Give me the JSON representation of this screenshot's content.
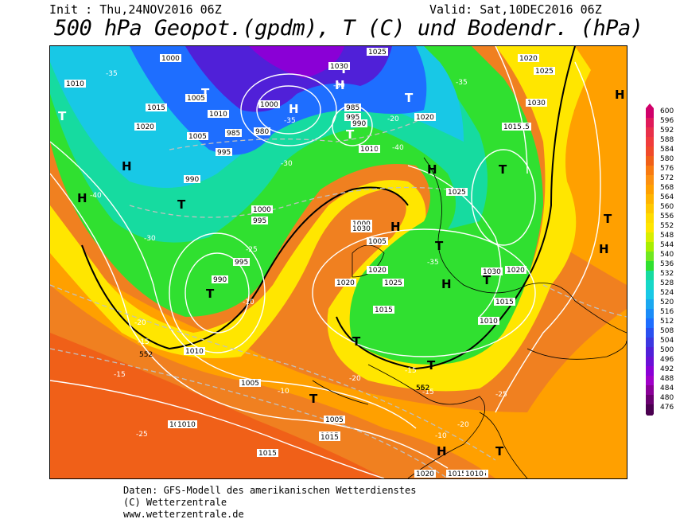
{
  "header": {
    "init": "Init : Thu,24NOV2016 06Z",
    "valid": "Valid: Sat,10DEC2016 06Z",
    "title": "500 hPa Geopot.(gpdm), T (C) und Bodendr. (hPa)"
  },
  "colors": {
    "deep_purple": "#8a00d6",
    "blue": "#1e6eff",
    "cyan": "#18c8e6",
    "teal": "#16dba0",
    "green": "#30e030",
    "yellow": "#ffe600",
    "orange": "#ffa000",
    "red_orange": "#f06018"
  },
  "scale": {
    "labels": [
      "600",
      "596",
      "592",
      "588",
      "584",
      "580",
      "576",
      "572",
      "568",
      "564",
      "560",
      "556",
      "552",
      "548",
      "544",
      "540",
      "536",
      "532",
      "528",
      "524",
      "520",
      "516",
      "512",
      "508",
      "504",
      "500",
      "496",
      "492",
      "488",
      "484",
      "480",
      "476"
    ],
    "colors": [
      "#d0006a",
      "#e01a5a",
      "#e8304a",
      "#f03c3c",
      "#f04a2a",
      "#f06018",
      "#f87a10",
      "#fc9010",
      "#ffa000",
      "#ffb400",
      "#ffc800",
      "#ffdc00",
      "#ffe600",
      "#d8ee00",
      "#a8ee00",
      "#70e820",
      "#30e030",
      "#16dba0",
      "#16d8c8",
      "#18c8e6",
      "#1aa8f0",
      "#1a8cf8",
      "#1e6eff",
      "#2a50f0",
      "#3c38e0",
      "#5020d8",
      "#6a10d6",
      "#8a00d6",
      "#a000c8",
      "#8a0098",
      "#6a0070",
      "#4a0050"
    ]
  },
  "map": {
    "pressure_labels": [
      "1000",
      "1005",
      "1010",
      "1015",
      "1020",
      "1025",
      "1030",
      "1010",
      "1005",
      "995",
      "990",
      "985",
      "995",
      "990",
      "985",
      "980",
      "1000",
      "995",
      "1020",
      "1025",
      "1030",
      "1015",
      "1010",
      "1005",
      "1000",
      "1005",
      "1010",
      "1015",
      "1020",
      "1015",
      "1010",
      "1020",
      "1030",
      "1015",
      "1025",
      "1020",
      "1025",
      "1030",
      "1020",
      "1015",
      "1010",
      "995",
      "990",
      "1000",
      "1005",
      "1015",
      "1010",
      "1015",
      "1020",
      "1015",
      "1015",
      "1010"
    ],
    "temp_labels": [
      "-35",
      "-40",
      "-30",
      "-25",
      "-40",
      "-35",
      "-30",
      "-35",
      "-25",
      "-20",
      "-15",
      "-10",
      "-15",
      "-20",
      "-15",
      "-10",
      "-25",
      "-30",
      "-35",
      "-20",
      "-15",
      "-10",
      "-20",
      "-25"
    ],
    "contour_labels": [
      "552",
      "562",
      "552"
    ],
    "symbols": [
      "H",
      "T"
    ]
  },
  "footer": {
    "line1": "Daten: GFS-Modell des amerikanischen Wetterdienstes",
    "line2": "(C) Wetterzentrale",
    "line3": "www.wetterzentrale.de"
  }
}
